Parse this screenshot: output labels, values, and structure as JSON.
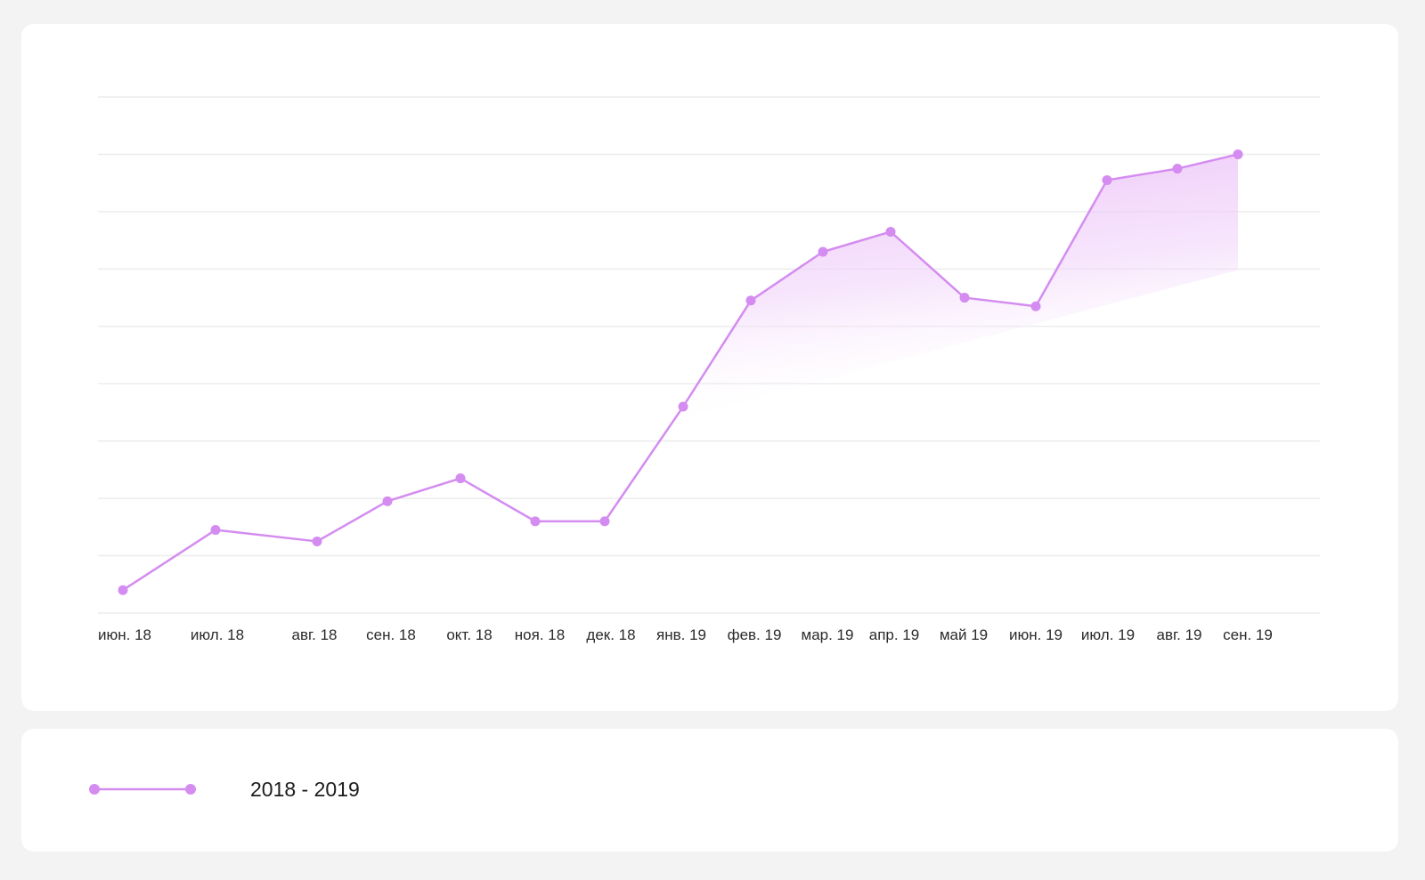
{
  "colors": {
    "series": "#d48cf0",
    "fill": "#e9b8f7",
    "grid": "#ececec",
    "card": "#ffffff",
    "background": "#f3f3f3"
  },
  "legend": {
    "label": "2018 - 2019"
  },
  "chart_data": {
    "type": "area",
    "title": "",
    "xlabel": "",
    "ylabel": "",
    "grid": true,
    "y_tick_labels_visible": false,
    "ylim": [
      0,
      9
    ],
    "categories": [
      "июн. 18",
      "июл. 18",
      "авг. 18",
      "сен. 18",
      "окт. 18",
      "ноя. 18",
      "дек. 18",
      "янв. 19",
      "фев. 19",
      "мар. 19",
      "апр. 19",
      "май 19",
      "июн. 19",
      "июл. 19",
      "авг. 19",
      "сен. 19"
    ],
    "series": [
      {
        "name": "2018 - 2019",
        "values": [
          0.4,
          1.45,
          1.25,
          1.95,
          2.35,
          1.6,
          1.6,
          3.6,
          5.45,
          6.3,
          6.65,
          5.5,
          5.35,
          7.55,
          7.75,
          8.0
        ]
      }
    ]
  }
}
